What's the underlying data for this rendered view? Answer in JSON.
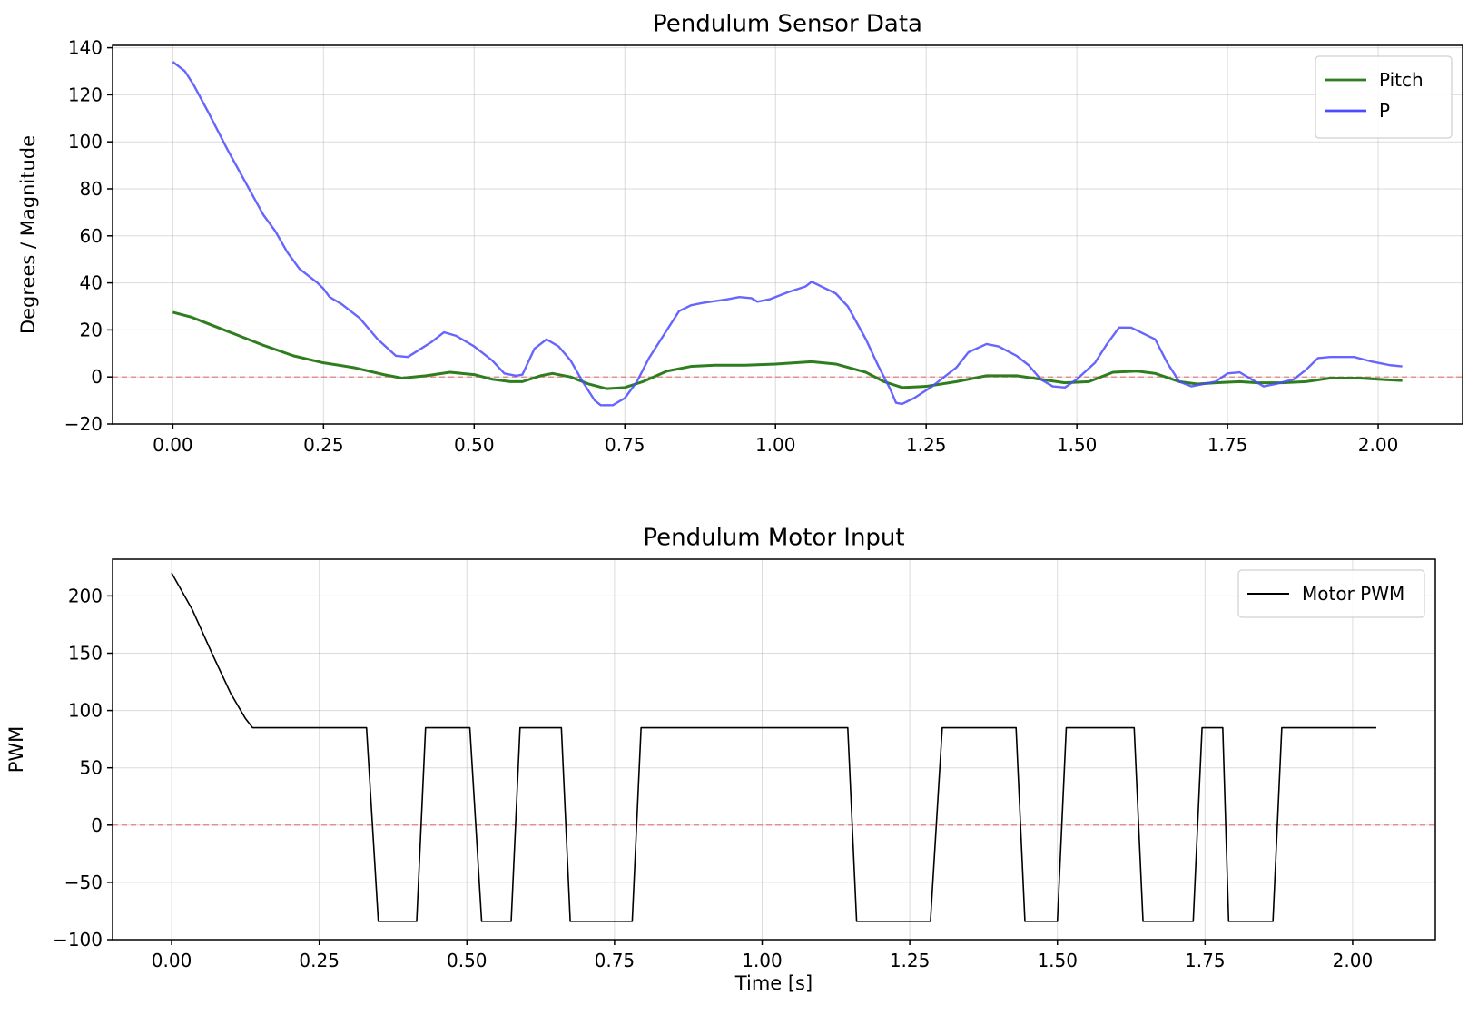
{
  "chart_data": [
    {
      "type": "line",
      "title": "Pendulum Sensor Data",
      "xlabel": "",
      "ylabel": "Degrees / Magnitude",
      "xlim": [
        -0.1,
        2.14
      ],
      "ylim": [
        -20,
        141
      ],
      "xticks": [
        "0.00",
        "0.25",
        "0.50",
        "0.75",
        "1.00",
        "1.25",
        "1.50",
        "1.75",
        "2.00"
      ],
      "yticks": [
        "−20",
        "0",
        "20",
        "40",
        "60",
        "80",
        "100",
        "120",
        "140"
      ],
      "grid": true,
      "legend_position": "top-right",
      "reference_line": {
        "y": 0,
        "style": "dashed",
        "color": "#e06666"
      },
      "series": [
        {
          "name": "Pitch",
          "color": "#2e7d1e",
          "points": [
            [
              0.0,
              27.5
            ],
            [
              0.03,
              25.5
            ],
            [
              0.06,
              22.5
            ],
            [
              0.1,
              18.5
            ],
            [
              0.15,
              13.5
            ],
            [
              0.2,
              9.0
            ],
            [
              0.25,
              6.0
            ],
            [
              0.3,
              4.0
            ],
            [
              0.35,
              1.0
            ],
            [
              0.38,
              -0.5
            ],
            [
              0.42,
              0.5
            ],
            [
              0.46,
              2.0
            ],
            [
              0.5,
              1.0
            ],
            [
              0.53,
              -1.0
            ],
            [
              0.56,
              -2.0
            ],
            [
              0.58,
              -2.0
            ],
            [
              0.61,
              0.5
            ],
            [
              0.63,
              1.5
            ],
            [
              0.66,
              0.0
            ],
            [
              0.69,
              -3.0
            ],
            [
              0.72,
              -5.0
            ],
            [
              0.75,
              -4.5
            ],
            [
              0.78,
              -2.0
            ],
            [
              0.82,
              2.5
            ],
            [
              0.86,
              4.5
            ],
            [
              0.9,
              5.0
            ],
            [
              0.95,
              5.0
            ],
            [
              1.0,
              5.5
            ],
            [
              1.06,
              6.5
            ],
            [
              1.1,
              5.5
            ],
            [
              1.15,
              2.0
            ],
            [
              1.18,
              -2.0
            ],
            [
              1.21,
              -4.5
            ],
            [
              1.25,
              -4.0
            ],
            [
              1.3,
              -2.0
            ],
            [
              1.35,
              0.5
            ],
            [
              1.4,
              0.5
            ],
            [
              1.44,
              -1.0
            ],
            [
              1.48,
              -2.5
            ],
            [
              1.52,
              -2.0
            ],
            [
              1.56,
              2.0
            ],
            [
              1.6,
              2.5
            ],
            [
              1.63,
              1.5
            ],
            [
              1.67,
              -2.0
            ],
            [
              1.7,
              -3.0
            ],
            [
              1.73,
              -2.5
            ],
            [
              1.77,
              -2.0
            ],
            [
              1.8,
              -2.5
            ],
            [
              1.84,
              -2.5
            ],
            [
              1.88,
              -2.0
            ],
            [
              1.92,
              -0.5
            ],
            [
              1.97,
              -0.5
            ],
            [
              2.0,
              -1.0
            ],
            [
              2.04,
              -1.5
            ]
          ]
        },
        {
          "name": "P",
          "color": "#4b4bff",
          "points": [
            [
              0.0,
              134.0
            ],
            [
              0.02,
              130.0
            ],
            [
              0.035,
              124.0
            ],
            [
              0.06,
              112.0
            ],
            [
              0.09,
              97.0
            ],
            [
              0.12,
              83.0
            ],
            [
              0.15,
              69.0
            ],
            [
              0.17,
              62.0
            ],
            [
              0.19,
              53.0
            ],
            [
              0.21,
              46.0
            ],
            [
              0.24,
              40.0
            ],
            [
              0.25,
              37.5
            ],
            [
              0.26,
              34.0
            ],
            [
              0.28,
              31.0
            ],
            [
              0.31,
              25.0
            ],
            [
              0.34,
              16.0
            ],
            [
              0.37,
              9.0
            ],
            [
              0.39,
              8.5
            ],
            [
              0.43,
              15.0
            ],
            [
              0.45,
              19.0
            ],
            [
              0.47,
              17.5
            ],
            [
              0.5,
              13.0
            ],
            [
              0.53,
              7.0
            ],
            [
              0.55,
              1.5
            ],
            [
              0.57,
              0.5
            ],
            [
              0.58,
              1.0
            ],
            [
              0.6,
              12.0
            ],
            [
              0.62,
              16.0
            ],
            [
              0.64,
              13.0
            ],
            [
              0.66,
              7.0
            ],
            [
              0.68,
              -2.0
            ],
            [
              0.7,
              -10.0
            ],
            [
              0.71,
              -12.0
            ],
            [
              0.73,
              -12.0
            ],
            [
              0.75,
              -9.0
            ],
            [
              0.77,
              -2.0
            ],
            [
              0.79,
              8.0
            ],
            [
              0.82,
              20.0
            ],
            [
              0.84,
              28.0
            ],
            [
              0.86,
              30.5
            ],
            [
              0.88,
              31.5
            ],
            [
              0.92,
              33.0
            ],
            [
              0.94,
              34.0
            ],
            [
              0.96,
              33.5
            ],
            [
              0.97,
              32.0
            ],
            [
              0.99,
              33.0
            ],
            [
              1.02,
              36.0
            ],
            [
              1.05,
              38.5
            ],
            [
              1.06,
              40.5
            ],
            [
              1.08,
              38.0
            ],
            [
              1.1,
              35.5
            ],
            [
              1.12,
              30.0
            ],
            [
              1.15,
              16.0
            ],
            [
              1.17,
              5.0
            ],
            [
              1.19,
              -5.0
            ],
            [
              1.2,
              -11.0
            ],
            [
              1.21,
              -11.5
            ],
            [
              1.23,
              -9.0
            ],
            [
              1.26,
              -4.0
            ],
            [
              1.28,
              0.0
            ],
            [
              1.3,
              4.0
            ],
            [
              1.32,
              10.5
            ],
            [
              1.35,
              14.0
            ],
            [
              1.37,
              13.0
            ],
            [
              1.4,
              9.0
            ],
            [
              1.42,
              5.0
            ],
            [
              1.44,
              -1.0
            ],
            [
              1.46,
              -4.0
            ],
            [
              1.48,
              -4.5
            ],
            [
              1.5,
              -1.0
            ],
            [
              1.53,
              6.0
            ],
            [
              1.55,
              14.0
            ],
            [
              1.57,
              21.0
            ],
            [
              1.59,
              21.0
            ],
            [
              1.61,
              18.5
            ],
            [
              1.63,
              16.0
            ],
            [
              1.65,
              6.0
            ],
            [
              1.67,
              -2.0
            ],
            [
              1.69,
              -4.0
            ],
            [
              1.71,
              -3.0
            ],
            [
              1.73,
              -2.0
            ],
            [
              1.75,
              1.5
            ],
            [
              1.77,
              2.0
            ],
            [
              1.79,
              -1.0
            ],
            [
              1.81,
              -4.0
            ],
            [
              1.83,
              -3.0
            ],
            [
              1.86,
              -1.0
            ],
            [
              1.88,
              3.0
            ],
            [
              1.9,
              8.0
            ],
            [
              1.92,
              8.5
            ],
            [
              1.96,
              8.5
            ],
            [
              1.99,
              6.5
            ],
            [
              2.02,
              5.0
            ],
            [
              2.04,
              4.5
            ]
          ]
        }
      ]
    },
    {
      "type": "line",
      "title": "Pendulum Motor Input",
      "xlabel": "Time [s]",
      "ylabel": "PWM",
      "xlim": [
        -0.1,
        2.14
      ],
      "ylim": [
        -100,
        232
      ],
      "xticks": [
        "0.00",
        "0.25",
        "0.50",
        "0.75",
        "1.00",
        "1.25",
        "1.50",
        "1.75",
        "2.00"
      ],
      "yticks": [
        "−100",
        "−50",
        "0",
        "50",
        "100",
        "150",
        "200"
      ],
      "grid": true,
      "legend_position": "top-right",
      "reference_line": {
        "y": 0,
        "style": "dashed",
        "color": "#e06666"
      },
      "series": [
        {
          "name": "Motor PWM",
          "color": "#000000",
          "points": [
            [
              0.0,
              220
            ],
            [
              0.035,
              188
            ],
            [
              0.07,
              148
            ],
            [
              0.1,
              115
            ],
            [
              0.125,
              93
            ],
            [
              0.137,
              85
            ],
            [
              0.33,
              85
            ],
            [
              0.35,
              -84
            ],
            [
              0.415,
              -84
            ],
            [
              0.43,
              85
            ],
            [
              0.505,
              85
            ],
            [
              0.525,
              -84
            ],
            [
              0.575,
              -84
            ],
            [
              0.59,
              85
            ],
            [
              0.66,
              85
            ],
            [
              0.675,
              -84
            ],
            [
              0.78,
              -84
            ],
            [
              0.795,
              85
            ],
            [
              1.145,
              85
            ],
            [
              1.16,
              -84
            ],
            [
              1.285,
              -84
            ],
            [
              1.305,
              85
            ],
            [
              1.43,
              85
            ],
            [
              1.445,
              -84
            ],
            [
              1.5,
              -84
            ],
            [
              1.515,
              85
            ],
            [
              1.63,
              85
            ],
            [
              1.645,
              -84
            ],
            [
              1.73,
              -84
            ],
            [
              1.745,
              85
            ],
            [
              1.78,
              85
            ],
            [
              1.79,
              -84
            ],
            [
              1.865,
              -84
            ],
            [
              1.88,
              85
            ],
            [
              2.04,
              85
            ]
          ]
        }
      ]
    }
  ]
}
